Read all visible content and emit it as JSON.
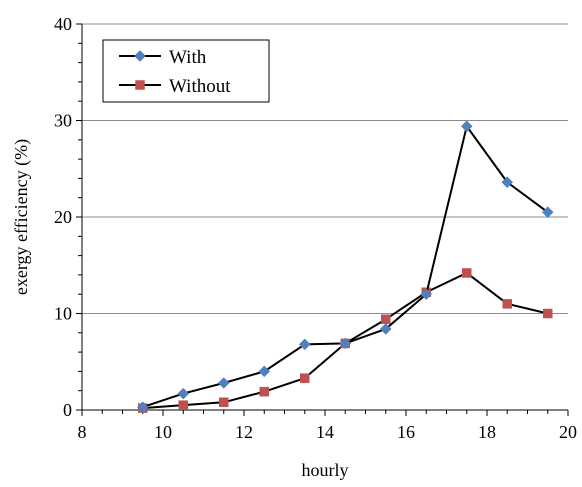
{
  "chart_data": {
    "type": "line",
    "xlabel": "hourly",
    "ylabel": "exergy efficiency (%)",
    "xlim": [
      8,
      20
    ],
    "ylim": [
      0,
      40
    ],
    "x_ticks": [
      8,
      10,
      12,
      14,
      16,
      18,
      20
    ],
    "y_ticks": [
      0,
      10,
      20,
      30,
      40
    ],
    "grid": "horizontal major",
    "legend_position": "top-left",
    "series": [
      {
        "name": "With",
        "color": "#4f81bd",
        "marker": "diamond",
        "x": [
          9.5,
          10.5,
          11.5,
          12.5,
          13.5,
          14.5,
          15.5,
          16.5,
          17.5,
          18.5,
          19.5
        ],
        "y": [
          0.3,
          1.7,
          2.8,
          4.0,
          6.8,
          6.9,
          8.4,
          12.0,
          29.4,
          23.6,
          20.5
        ]
      },
      {
        "name": "Without",
        "color": "#c0504d",
        "marker": "square",
        "x": [
          9.5,
          10.5,
          11.5,
          12.5,
          13.5,
          14.5,
          15.5,
          16.5,
          17.5,
          18.5,
          19.5
        ],
        "y": [
          0.2,
          0.5,
          0.8,
          1.9,
          3.3,
          6.9,
          9.4,
          12.2,
          14.2,
          11.0,
          10.0
        ]
      }
    ]
  }
}
